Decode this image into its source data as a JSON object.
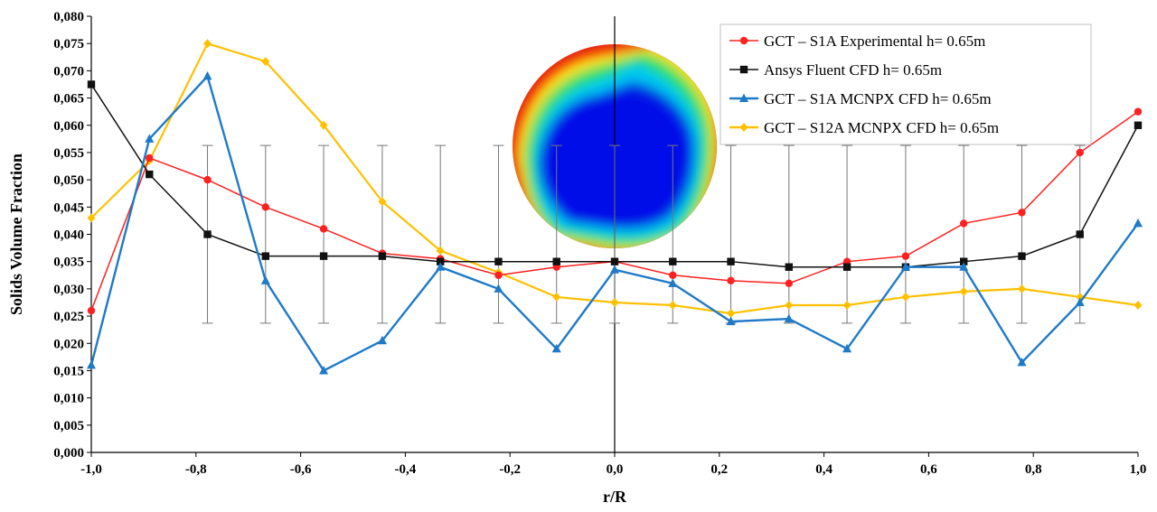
{
  "chart_data": {
    "type": "line",
    "xlabel": "r/R",
    "ylabel": "Solids Volume Fraction",
    "xlim": [
      -1.0,
      1.0
    ],
    "ylim": [
      0.0,
      0.08
    ],
    "x_ticks": [
      "-1,0",
      "-0,8",
      "-0,6",
      "-0,4",
      "-0,2",
      "0,0",
      "0,2",
      "0,4",
      "0,6",
      "0,8",
      "1,0"
    ],
    "y_ticks": [
      "0,000",
      "0,005",
      "0,010",
      "0,015",
      "0,020",
      "0,025",
      "0,030",
      "0,035",
      "0,040",
      "0,045",
      "0,050",
      "0,055",
      "0,060",
      "0,065",
      "0,070",
      "0,075",
      "0,080"
    ],
    "grid": false,
    "legend_position": "top-right",
    "x": [
      -1.0,
      -0.889,
      -0.778,
      -0.667,
      -0.556,
      -0.444,
      -0.333,
      -0.222,
      -0.111,
      0.0,
      0.111,
      0.222,
      0.333,
      0.444,
      0.556,
      0.667,
      0.778,
      0.889,
      1.0
    ],
    "series": [
      {
        "name": "GCT – S1A Experimental h= 0.65m",
        "color": "#ff2020",
        "marker": "circle",
        "values": [
          0.026,
          0.054,
          0.05,
          0.045,
          0.041,
          0.0365,
          0.0355,
          0.0325,
          0.034,
          0.035,
          0.0325,
          0.0315,
          0.031,
          0.035,
          0.036,
          0.042,
          0.044,
          0.055,
          0.0625
        ],
        "error": [
          null,
          null,
          0.0163,
          0.0163,
          0.0163,
          0.0163,
          0.0163,
          0.0163,
          0.0163,
          0.0163,
          0.0163,
          0.0163,
          0.0163,
          0.0163,
          0.0163,
          0.0163,
          0.0163,
          0.0163,
          null
        ]
      },
      {
        "name": "Ansys Fluent CFD h= 0.65m",
        "color": "#111111",
        "marker": "square",
        "values": [
          0.0675,
          0.051,
          0.04,
          0.036,
          0.036,
          0.036,
          0.035,
          0.035,
          0.035,
          0.035,
          0.035,
          0.035,
          0.034,
          0.034,
          0.034,
          0.035,
          0.036,
          0.04,
          0.06
        ]
      },
      {
        "name": "GCT – S1A MCNPX CFD h= 0.65m",
        "color": "#1f7ac8",
        "marker": "triangle",
        "values": [
          0.016,
          0.0575,
          0.069,
          0.0315,
          0.015,
          0.0205,
          0.034,
          0.03,
          0.019,
          0.0335,
          0.031,
          0.024,
          0.0245,
          0.019,
          0.034,
          0.034,
          0.0165,
          0.0275,
          0.042
        ]
      },
      {
        "name": "GCT – S12A MCNPX CFD h= 0.65m",
        "color": "#ffc000",
        "marker": "diamond",
        "values": [
          0.043,
          0.0535,
          0.075,
          0.0717,
          0.06,
          0.046,
          0.037,
          0.033,
          0.0285,
          0.0275,
          0.027,
          0.0255,
          0.027,
          0.027,
          0.0285,
          0.0295,
          0.03,
          0.0285,
          0.027
        ]
      }
    ]
  }
}
